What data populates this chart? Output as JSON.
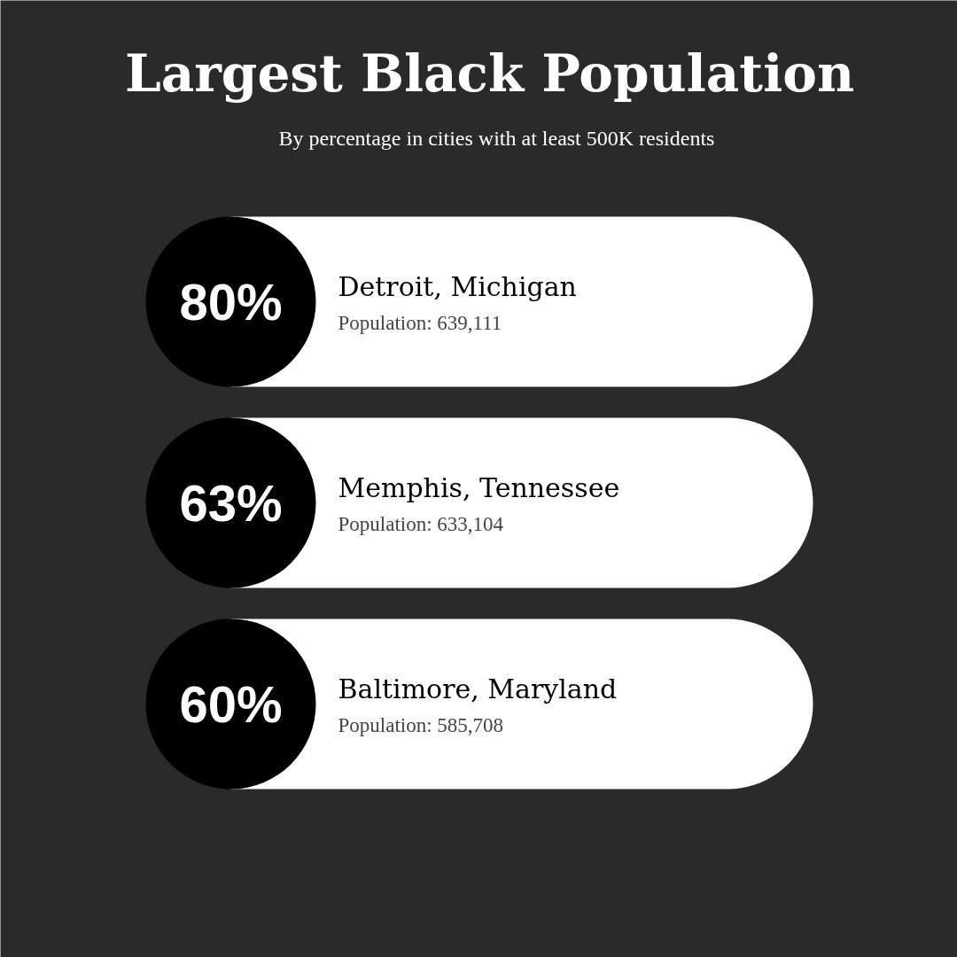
{
  "chart_data": {
    "type": "other",
    "title": "Largest Black Population",
    "subtitle": "By percentage in cities with at least 500K residents",
    "categories": [
      "Detroit, Michigan",
      "Memphis, Tennessee",
      "Baltimore, Maryland"
    ],
    "values": [
      80,
      63,
      60
    ],
    "value_labels": [
      "80%",
      "63%",
      "60%"
    ],
    "annotations": [
      "Population: 639,111",
      "Population: 633,104",
      "Population: 585,708"
    ]
  }
}
